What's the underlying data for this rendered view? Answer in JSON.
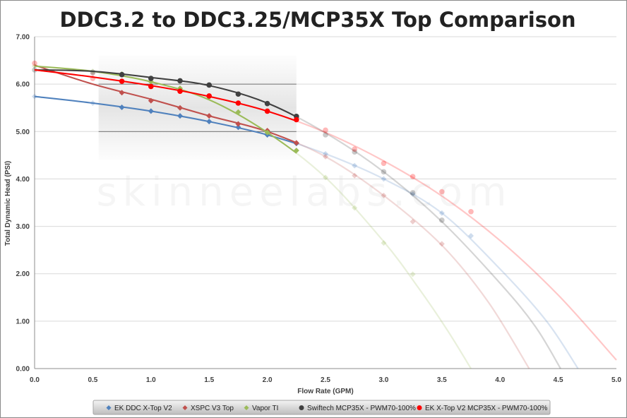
{
  "title": "DDC3.2 to DDC3.25/MCP35X Top Comparison",
  "watermark": "skinneelabs.com",
  "chart_data": {
    "type": "scatter",
    "title": "DDC3.2 to DDC3.25/MCP35X Top Comparison",
    "xlabel": "Flow Rate (GPM)",
    "ylabel": "Total Dynamic Head (PSI)",
    "xlim": [
      0,
      5
    ],
    "ylim": [
      0,
      7
    ],
    "x_ticks": [
      "0.0",
      "0.5",
      "1.0",
      "1.5",
      "2.0",
      "2.5",
      "3.0",
      "3.5",
      "4.0",
      "4.5",
      "5.0"
    ],
    "y_ticks": [
      "0.00",
      "1.00",
      "2.00",
      "3.00",
      "4.00",
      "5.00",
      "6.00",
      "7.00"
    ],
    "grid": "horizontal",
    "legend_position": "bottom",
    "highlight_region": {
      "x": [
        0.55,
        2.25
      ],
      "y": [
        4.4,
        6.6
      ]
    },
    "series": [
      {
        "name": "EK DDC X-Top V2",
        "color": "#4f81bd",
        "marker": "diamond",
        "x": [
          0,
          0.5,
          0.75,
          1.0,
          1.25,
          1.5,
          1.75,
          2.0,
          2.25,
          2.5,
          2.75,
          3.0,
          3.25,
          3.5,
          3.75
        ],
        "y": [
          5.74,
          5.6,
          5.51,
          5.43,
          5.33,
          5.21,
          5.09,
          4.93,
          4.75,
          4.53,
          4.28,
          4.0,
          3.68,
          3.28,
          2.8
        ],
        "curve": {
          "x": [
            0,
            0.5,
            1.0,
            1.5,
            2.0,
            2.5,
            3.0,
            3.5,
            4.0,
            4.4,
            4.67
          ],
          "y": [
            5.74,
            5.6,
            5.43,
            5.21,
            4.93,
            4.53,
            4.0,
            3.28,
            2.1,
            1.0,
            0.0
          ]
        }
      },
      {
        "name": "XSPC V3 Top",
        "color": "#c0504d",
        "marker": "diamond",
        "x": [
          0.5,
          0.75,
          1.0,
          1.25,
          1.5,
          1.75,
          2.0,
          2.25,
          2.5,
          2.75,
          3.0,
          3.25,
          3.5
        ],
        "y": [
          6.22,
          5.82,
          5.65,
          5.5,
          5.33,
          5.16,
          5.02,
          4.76,
          4.47,
          4.07,
          3.65,
          3.1,
          2.63
        ],
        "curve": {
          "x": [
            0,
            0.5,
            1.0,
            1.5,
            2.0,
            2.5,
            3.0,
            3.5,
            3.9,
            4.25
          ],
          "y": [
            6.4,
            6.0,
            5.68,
            5.33,
            5.0,
            4.47,
            3.65,
            2.6,
            1.4,
            0.0
          ]
        }
      },
      {
        "name": "Vapor TI",
        "color": "#9bbb59",
        "marker": "diamond",
        "x": [
          0,
          0.5,
          0.75,
          1.0,
          1.25,
          1.5,
          1.75,
          2.0,
          2.25,
          2.5,
          2.75,
          3.0,
          3.25
        ],
        "y": [
          6.38,
          6.27,
          6.21,
          6.05,
          5.91,
          5.73,
          5.41,
          4.98,
          4.6,
          4.03,
          3.39,
          2.65,
          1.99
        ],
        "curve": {
          "x": [
            0,
            0.5,
            1.0,
            1.5,
            2.0,
            2.5,
            3.0,
            3.3,
            3.55,
            3.75
          ],
          "y": [
            6.38,
            6.27,
            6.05,
            5.67,
            4.98,
            4.03,
            2.68,
            1.7,
            0.8,
            0.0
          ]
        }
      },
      {
        "name": "Swiftech MCP35X - PWM70-100%",
        "color": "#404040",
        "marker": "circle",
        "x": [
          0,
          0.5,
          0.75,
          1.0,
          1.25,
          1.5,
          1.75,
          2.0,
          2.25,
          2.5,
          2.75,
          3.0,
          3.25,
          3.5
        ],
        "y": [
          6.3,
          6.25,
          6.2,
          6.12,
          6.07,
          5.98,
          5.79,
          5.59,
          5.32,
          4.93,
          4.57,
          4.15,
          3.71,
          3.13
        ],
        "curve": {
          "x": [
            0,
            0.5,
            1.0,
            1.5,
            2.0,
            2.5,
            3.0,
            3.5,
            4.0,
            4.3,
            4.52
          ],
          "y": [
            6.3,
            6.27,
            6.14,
            5.97,
            5.6,
            4.97,
            4.15,
            3.1,
            1.8,
            0.9,
            0.0
          ]
        }
      },
      {
        "name": "EK X-Top V2 MCP35X - PWM70-100%",
        "color": "#ff0000",
        "marker": "circle",
        "x": [
          0,
          0.5,
          0.75,
          1.0,
          1.25,
          1.5,
          1.75,
          2.0,
          2.25,
          2.5,
          2.75,
          3.0,
          3.25,
          3.5,
          3.75
        ],
        "y": [
          6.44,
          6.12,
          6.06,
          5.95,
          5.85,
          5.75,
          5.6,
          5.43,
          5.25,
          5.03,
          4.63,
          4.33,
          4.05,
          3.73,
          3.31
        ],
        "curve": {
          "x": [
            0,
            0.5,
            1.0,
            1.5,
            2.0,
            2.5,
            3.0,
            3.5,
            4.0,
            4.5,
            5.0
          ],
          "y": [
            6.3,
            6.15,
            5.97,
            5.74,
            5.43,
            4.98,
            4.38,
            3.64,
            2.7,
            1.55,
            0.18
          ]
        }
      }
    ]
  }
}
